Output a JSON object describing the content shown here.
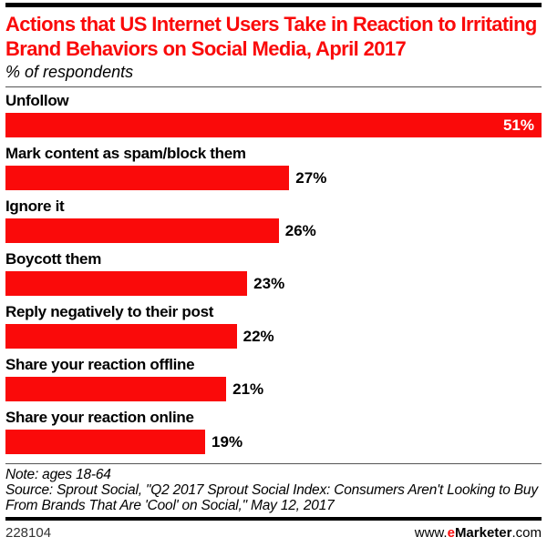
{
  "header": {
    "title": "Actions that US Internet Users Take in Reaction to Irritating Brand Behaviors on Social Media, April 2017",
    "subtitle": "% of respondents"
  },
  "chart_data": {
    "type": "bar",
    "orientation": "horizontal",
    "title": "Actions that US Internet Users Take in Reaction to Irritating Brand Behaviors on Social Media, April 2017",
    "subtitle": "% of respondents",
    "categories": [
      "Unfollow",
      "Mark content as spam/block them",
      "Ignore it",
      "Boycott them",
      "Reply negatively to their post",
      "Share your reaction offline",
      "Share your reaction online"
    ],
    "values": [
      51,
      27,
      26,
      23,
      22,
      21,
      19
    ],
    "unit": "%",
    "xlim": [
      0,
      51
    ],
    "grid": false,
    "legend": false,
    "bar_color": "#fa0a0a",
    "value_label_style": "outside-black, max-bar-inside-white"
  },
  "notes": {
    "note": "Note: ages 18-64",
    "source": "Source: Sprout Social, \"Q2 2017 Sprout Social Index: Consumers Aren't Looking to Buy From Brands That Are 'Cool' on Social,\" May 12, 2017"
  },
  "footer": {
    "chart_id": "228104",
    "brand": {
      "prefix": "www.",
      "e": "e",
      "name": "Marketer",
      "suffix": ".com"
    }
  },
  "colors": {
    "accent_red": "#fa0a0a",
    "rule_black": "#000000",
    "text_black": "#000000"
  }
}
